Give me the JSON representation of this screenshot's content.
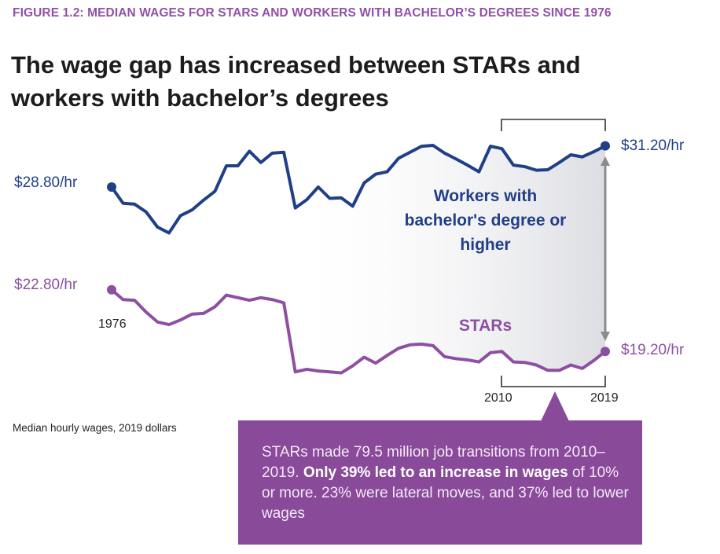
{
  "figure_label": "FIGURE 1.2:  MEDIAN WAGES FOR STARS AND WORKERS WITH BACHELOR’S DEGREES SINCE 1976",
  "headline": "The wage gap has increased between STARs and workers with bachelor’s degrees",
  "note": "Median hourly wages, 2019 dollars",
  "callout": {
    "part1": "STARs made 79.5 million job transitions from 2010–2019. ",
    "bold": "Only 39% led to an increase in wages",
    "part2": " of 10% or more. 23% were lateral moves, and 37% led to lower wages"
  },
  "chart_data": {
    "type": "line",
    "title": "",
    "xlabel": "",
    "ylabel": "",
    "x_start_label": "1976",
    "bracket_labels": [
      "2010",
      "2019"
    ],
    "grid": false,
    "colors": {
      "bachelors": "#213f87",
      "stars": "#8e4fa3",
      "accent": "#8a4a9a"
    },
    "x": [
      1976,
      1977,
      1978,
      1979,
      1980,
      1981,
      1982,
      1983,
      1984,
      1985,
      1986,
      1987,
      1988,
      1989,
      1990,
      1991,
      1992,
      1993,
      1994,
      1995,
      1996,
      1997,
      1998,
      1999,
      2000,
      2001,
      2002,
      2003,
      2004,
      2005,
      2006,
      2007,
      2008,
      2009,
      2010,
      2011,
      2012,
      2013,
      2014,
      2015,
      2016,
      2017,
      2018,
      2019
    ],
    "series": [
      {
        "name": "Workers with bachelor's degree or higher",
        "start_label": "$28.80/hr",
        "end_label": "$31.20/hr",
        "values": [
          28.8,
          27.85,
          27.8,
          27.35,
          26.46,
          26.12,
          27.13,
          27.46,
          28.03,
          28.55,
          30.04,
          30.04,
          30.89,
          30.23,
          30.78,
          30.83,
          27.58,
          28.06,
          28.8,
          28.14,
          28.17,
          27.68,
          29.04,
          29.55,
          29.69,
          30.48,
          30.83,
          31.18,
          31.23,
          30.78,
          30.44,
          30.08,
          29.69,
          31.18,
          31.04,
          30.08,
          29.99,
          29.78,
          29.81,
          30.23,
          30.68,
          30.56,
          30.86,
          31.2
        ]
      },
      {
        "name": "STARs",
        "start_label": "$22.80/hr",
        "end_label": "$19.20/hr",
        "values": [
          22.8,
          22.23,
          22.19,
          21.5,
          20.92,
          20.77,
          21.04,
          21.38,
          21.42,
          21.81,
          22.49,
          22.34,
          22.19,
          22.34,
          22.23,
          22.04,
          18.01,
          18.16,
          18.06,
          18.01,
          17.95,
          18.36,
          18.87,
          18.52,
          18.97,
          19.39,
          19.59,
          19.63,
          19.54,
          18.9,
          18.78,
          18.71,
          18.59,
          19.13,
          19.2,
          18.59,
          18.56,
          18.41,
          18.1,
          18.1,
          18.41,
          18.21,
          18.67,
          19.2
        ]
      }
    ]
  }
}
